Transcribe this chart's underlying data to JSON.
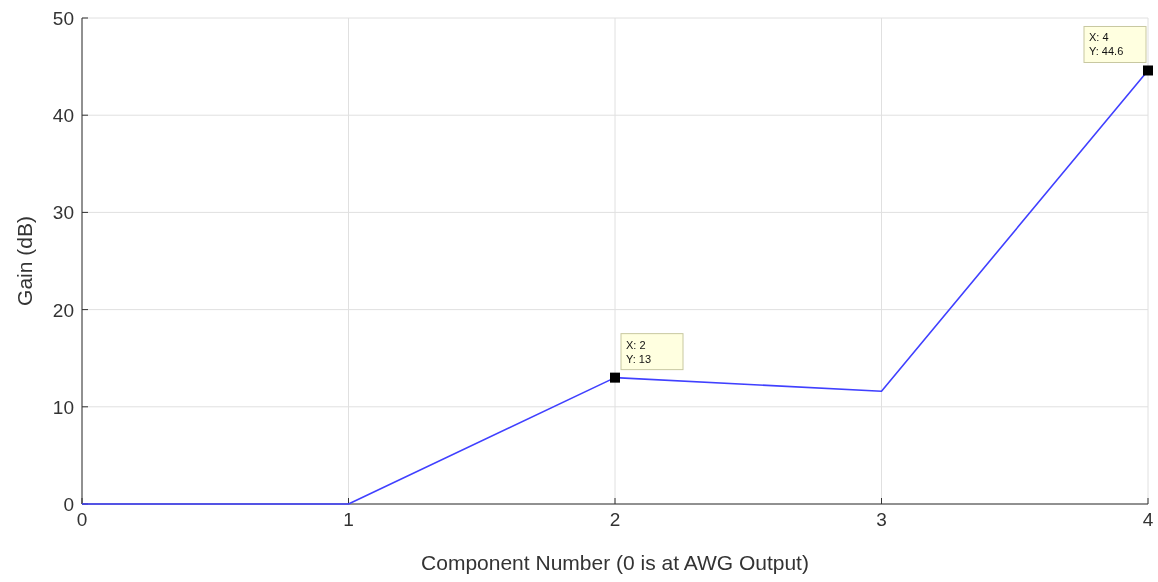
{
  "chart_data": {
    "type": "line",
    "xlabel": "Component Number (0 is at AWG Output)",
    "ylabel": "Gain (dB)",
    "x": [
      0,
      1,
      2,
      3,
      4
    ],
    "series": [
      {
        "color": "#4040ff",
        "values": [
          0,
          0,
          13,
          11.6,
          44.6
        ]
      }
    ],
    "xlim": [
      0,
      4
    ],
    "xticks": [
      0,
      1,
      2,
      3,
      4
    ],
    "ylim": [
      0,
      50
    ],
    "yticks": [
      0,
      10,
      20,
      30,
      40,
      50
    ],
    "grid": true,
    "marker": "none",
    "line_style": "solid",
    "annotations": [
      {
        "text": "X: 2\nY: 13",
        "x": 2,
        "y": 13
      },
      {
        "text": "X: 4\nY: 44.6",
        "x": 4,
        "y": 44.6
      }
    ]
  }
}
